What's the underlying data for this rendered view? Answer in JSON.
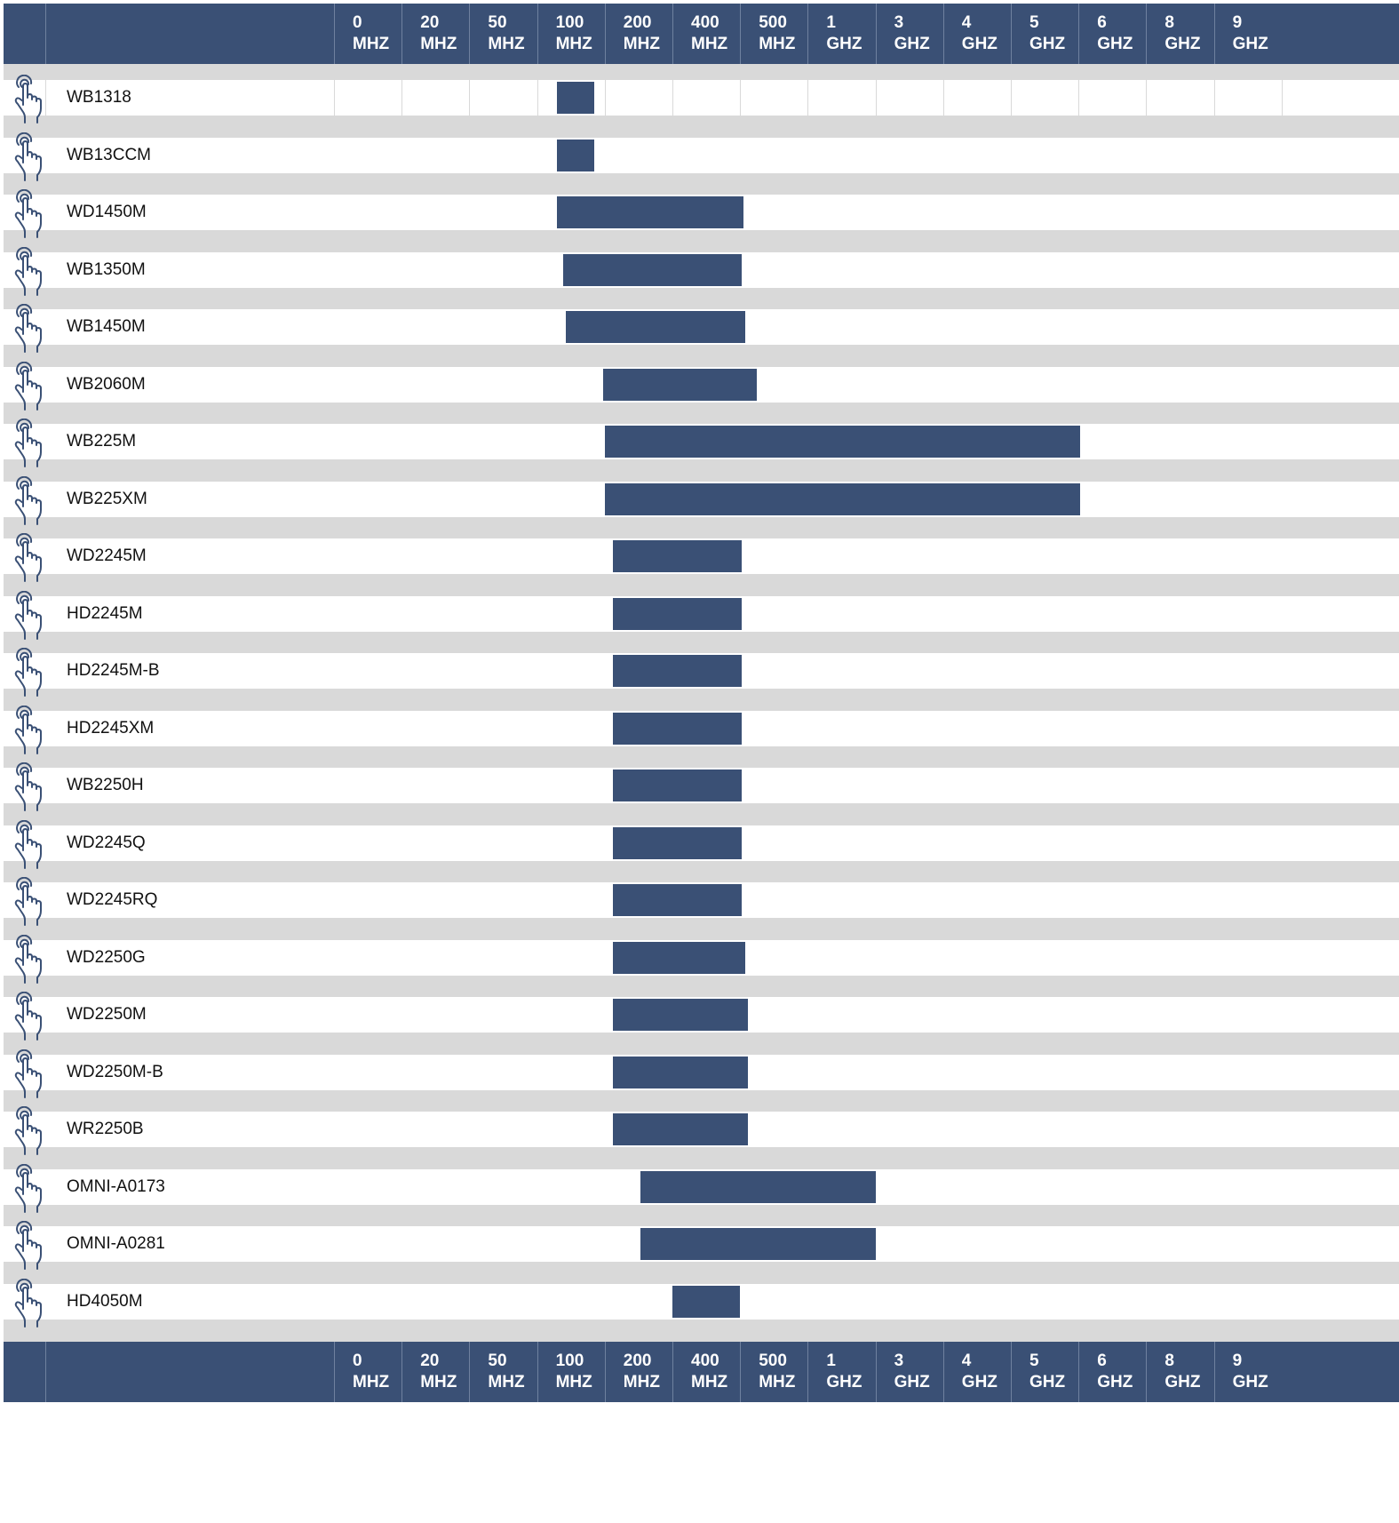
{
  "chart_data": {
    "type": "bar",
    "orientation": "horizontal-range",
    "axis_ticks": [
      {
        "value": "0",
        "unit": "MHZ"
      },
      {
        "value": "20",
        "unit": "MHZ"
      },
      {
        "value": "50",
        "unit": "MHZ"
      },
      {
        "value": "100",
        "unit": "MHZ"
      },
      {
        "value": "200",
        "unit": "MHZ"
      },
      {
        "value": "400",
        "unit": "MHZ"
      },
      {
        "value": "500",
        "unit": "MHZ"
      },
      {
        "value": "1",
        "unit": "GHZ"
      },
      {
        "value": "3",
        "unit": "GHZ"
      },
      {
        "value": "4",
        "unit": "GHZ"
      },
      {
        "value": "5",
        "unit": "GHZ"
      },
      {
        "value": "6",
        "unit": "GHZ"
      },
      {
        "value": "8",
        "unit": "GHZ"
      },
      {
        "value": "9",
        "unit": "GHZ"
      }
    ],
    "rows": [
      {
        "name": "WB1318",
        "range": [
          3.3,
          3.85
        ]
      },
      {
        "name": "WB13CCM",
        "range": [
          3.3,
          3.85
        ]
      },
      {
        "name": "WD1450M",
        "range": [
          3.3,
          6.05
        ]
      },
      {
        "name": "WB1350M",
        "range": [
          3.38,
          6.02
        ]
      },
      {
        "name": "WB1450M",
        "range": [
          3.43,
          6.08
        ]
      },
      {
        "name": "WB2060M",
        "range": [
          3.98,
          6.25
        ]
      },
      {
        "name": "WB225M",
        "range": [
          4.0,
          11.02
        ]
      },
      {
        "name": "WB225XM",
        "range": [
          4.0,
          11.02
        ]
      },
      {
        "name": "WD2245M",
        "range": [
          4.12,
          6.02
        ]
      },
      {
        "name": "HD2245M",
        "range": [
          4.12,
          6.02
        ]
      },
      {
        "name": "HD2245M-B",
        "range": [
          4.12,
          6.02
        ]
      },
      {
        "name": "HD2245XM",
        "range": [
          4.12,
          6.02
        ]
      },
      {
        "name": "WB2250H",
        "range": [
          4.12,
          6.02
        ]
      },
      {
        "name": "WD2245Q",
        "range": [
          4.12,
          6.02
        ]
      },
      {
        "name": "WD2245RQ",
        "range": [
          4.12,
          6.02
        ]
      },
      {
        "name": "WD2250G",
        "range": [
          4.12,
          6.07
        ]
      },
      {
        "name": "WD2250M",
        "range": [
          4.12,
          6.12
        ]
      },
      {
        "name": "WD2250M-B",
        "range": [
          4.12,
          6.12
        ]
      },
      {
        "name": "WR2250B",
        "range": [
          4.12,
          6.12
        ]
      },
      {
        "name": "OMNI-A0173",
        "range": [
          4.53,
          8.0
        ]
      },
      {
        "name": "OMNI-A0281",
        "range": [
          4.53,
          8.0
        ]
      },
      {
        "name": "HD4050M",
        "range": [
          5.0,
          6.0
        ]
      }
    ],
    "bar_color": "#3a5075",
    "header_color": "#3a5075",
    "band_color": "#d9d9d9",
    "row_icon": "tap-hand-icon",
    "grid": true
  }
}
